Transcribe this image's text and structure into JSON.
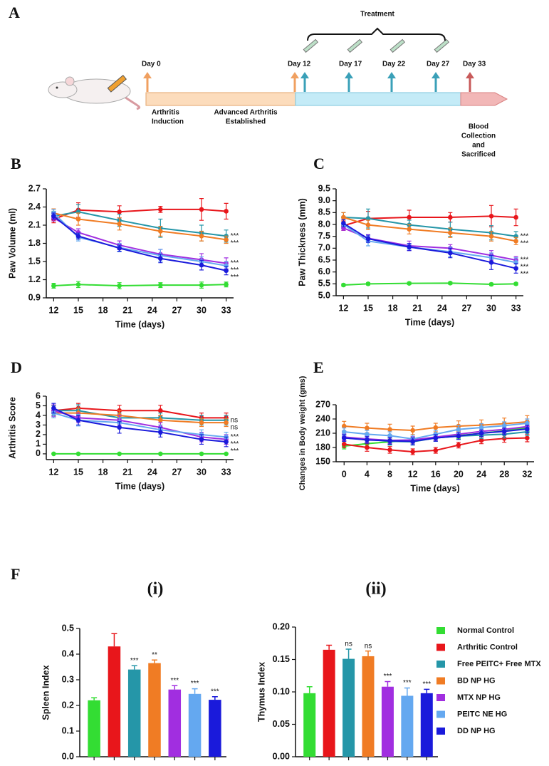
{
  "timeline": {
    "label": "A",
    "bracket_label": "Treatment",
    "markers": [
      "Day 0",
      "Day 12",
      "Day 17",
      "Day 22",
      "Day 27",
      "Day 33"
    ],
    "notes": [
      [
        "Arthritis",
        "Induction"
      ],
      [
        "Advanced  Arthritis",
        "Established"
      ],
      [
        "Blood",
        "Collection",
        "and",
        "Sacrificed"
      ]
    ]
  },
  "chart_data": [
    {
      "type": "line",
      "label": "B",
      "y_label": "Paw Volume (ml)",
      "x_label": "Time (days)",
      "x": [
        12,
        15,
        20,
        25,
        30,
        33
      ],
      "xlim": [
        11.1,
        33.9
      ],
      "xticks": [
        12,
        15,
        18,
        21,
        24,
        27,
        30,
        33
      ],
      "ylim": [
        0.9,
        2.7
      ],
      "yticks": [
        0.9,
        1.2,
        1.5,
        1.8,
        2.1,
        2.4,
        2.7
      ],
      "series": [
        {
          "color": "#33dd33",
          "values": [
            1.1,
            1.12,
            1.1,
            1.11,
            1.11,
            1.12
          ],
          "errors": [
            0.04,
            0.05,
            0.05,
            0.04,
            0.05,
            0.04
          ]
        },
        {
          "color": "#e8161b",
          "values": [
            2.2,
            2.35,
            2.32,
            2.36,
            2.36,
            2.33
          ],
          "errors": [
            0.06,
            0.12,
            0.1,
            0.05,
            0.18,
            0.13
          ]
        },
        {
          "color": "#2596a8",
          "values": [
            2.25,
            2.32,
            2.18,
            2.05,
            1.97,
            1.92
          ],
          "errors": [
            0.08,
            0.12,
            0.1,
            0.15,
            0.13,
            0.1
          ],
          "annotation": "***"
        },
        {
          "color": "#f07c24",
          "values": [
            2.3,
            2.2,
            2.12,
            2.0,
            1.92,
            1.86
          ],
          "errors": [
            0.07,
            0.1,
            0.1,
            0.08,
            0.08,
            0.06
          ],
          "annotation": "***"
        },
        {
          "color": "#a12ee0",
          "values": [
            2.22,
            1.98,
            1.77,
            1.62,
            1.53,
            1.47
          ],
          "errors": [
            0.05,
            0.06,
            0.07,
            0.08,
            0.1,
            0.09
          ],
          "annotation": "***"
        },
        {
          "color": "#64a8f0",
          "values": [
            2.3,
            1.9,
            1.73,
            1.6,
            1.5,
            1.43
          ],
          "errors": [
            0.06,
            0.06,
            0.07,
            0.1,
            0.08,
            0.07
          ],
          "annotation": "***"
        },
        {
          "color": "#1a1adb",
          "values": [
            2.25,
            1.92,
            1.72,
            1.55,
            1.44,
            1.35
          ],
          "errors": [
            0.05,
            0.05,
            0.05,
            0.07,
            0.08,
            0.07
          ],
          "annotation": "***"
        }
      ]
    },
    {
      "type": "line",
      "label": "C",
      "y_label": "Paw Thickness (mm)",
      "x_label": "Time (days)",
      "x": [
        12,
        15,
        20,
        25,
        30,
        33
      ],
      "xlim": [
        11.1,
        33.9
      ],
      "xticks": [
        12,
        15,
        18,
        21,
        24,
        27,
        30,
        33
      ],
      "ylim": [
        5,
        9.5
      ],
      "yticks": [
        {
          "value": 5,
          "label": "5.0"
        },
        5.5,
        {
          "value": 6,
          "label": "6.0"
        },
        6.5,
        {
          "value": 7,
          "label": "7.0"
        },
        7.5,
        {
          "value": 8,
          "label": "8.0"
        },
        8.5,
        {
          "value": 9,
          "label": "9.0"
        },
        9.5
      ],
      "series": [
        {
          "color": "#33dd33",
          "values": [
            5.45,
            5.5,
            5.52,
            5.53,
            5.48,
            5.5
          ],
          "errors": [
            0.05,
            0.05,
            0.05,
            0.05,
            0.05,
            0.05
          ]
        },
        {
          "color": "#e8161b",
          "values": [
            7.95,
            8.25,
            8.3,
            8.3,
            8.35,
            8.3
          ],
          "errors": [
            0.2,
            0.3,
            0.3,
            0.2,
            0.45,
            0.35
          ]
        },
        {
          "color": "#2596a8",
          "values": [
            8.3,
            8.25,
            7.98,
            7.8,
            7.65,
            7.5
          ],
          "errors": [
            0.2,
            0.4,
            0.2,
            0.3,
            0.3,
            0.2
          ],
          "annotation": "***"
        },
        {
          "color": "#f07c24",
          "values": [
            8.3,
            7.98,
            7.8,
            7.65,
            7.5,
            7.3
          ],
          "errors": [
            0.2,
            0.2,
            0.2,
            0.2,
            0.2,
            0.15
          ],
          "annotation": "***"
        },
        {
          "color": "#a12ee0",
          "values": [
            7.85,
            7.42,
            7.1,
            7.0,
            6.7,
            6.5
          ],
          "errors": [
            0.1,
            0.15,
            0.2,
            0.15,
            0.2,
            0.15
          ],
          "annotation": "***"
        },
        {
          "color": "#64a8f0",
          "values": [
            8.0,
            7.3,
            7.05,
            6.85,
            6.6,
            6.4
          ],
          "errors": [
            0.1,
            0.2,
            0.1,
            0.2,
            0.2,
            0.2
          ],
          "annotation": "***"
        },
        {
          "color": "#1a1adb",
          "values": [
            8.05,
            7.4,
            7.05,
            6.8,
            6.4,
            6.15
          ],
          "errors": [
            0.15,
            0.15,
            0.15,
            0.2,
            0.3,
            0.2
          ],
          "annotation": "***"
        }
      ]
    },
    {
      "type": "line",
      "label": "D",
      "y_label": "Arthritis Score",
      "x_label": "Time (days)",
      "x": [
        12,
        15,
        20,
        25,
        30,
        33
      ],
      "xlim": [
        11.1,
        33.9
      ],
      "xticks": [
        12,
        15,
        18,
        21,
        24,
        27,
        30,
        33
      ],
      "ylim": [
        -0.6,
        6
      ],
      "yticks": [
        0,
        1,
        2,
        3,
        4,
        5,
        6
      ],
      "series": [
        {
          "color": "#33dd33",
          "values": [
            0,
            0,
            0,
            0,
            0,
            0
          ],
          "errors": [
            0,
            0,
            0,
            0,
            0,
            0
          ]
        },
        {
          "color": "#e8161b",
          "values": [
            4.5,
            4.75,
            4.5,
            4.5,
            3.75,
            3.75
          ],
          "errors": [
            0.5,
            0.5,
            0.55,
            0.55,
            0.5,
            0.5
          ]
        },
        {
          "color": "#2596a8",
          "values": [
            4.5,
            4.5,
            3.75,
            3.75,
            3.5,
            3.5
          ],
          "errors": [
            0.5,
            0.6,
            0.5,
            0.5,
            0.5,
            0.5
          ],
          "annotation": "ns"
        },
        {
          "color": "#f07c24",
          "values": [
            4.25,
            4.25,
            4.0,
            3.5,
            3.25,
            3.25
          ],
          "errors": [
            0.5,
            0.5,
            0.5,
            0.5,
            0.4,
            0.4
          ],
          "annotation": "ns"
        },
        {
          "color": "#a12ee0",
          "values": [
            4.5,
            3.75,
            3.5,
            2.75,
            1.75,
            1.5
          ],
          "errors": [
            0.6,
            0.5,
            0.5,
            0.5,
            0.5,
            0.5
          ],
          "annotation": "***"
        },
        {
          "color": "#64a8f0",
          "values": [
            4.25,
            3.5,
            3.25,
            2.5,
            2.0,
            1.75
          ],
          "errors": [
            0.5,
            0.6,
            0.5,
            0.5,
            0.5,
            0.5
          ],
          "annotation": "***"
        },
        {
          "color": "#1a1adb",
          "values": [
            4.75,
            3.5,
            2.75,
            2.25,
            1.5,
            1.25
          ],
          "errors": [
            0.5,
            0.5,
            0.6,
            0.5,
            0.5,
            0.5
          ],
          "annotation": "***"
        }
      ]
    },
    {
      "type": "line",
      "label": "E",
      "y_label": "Changes in Body weight (gms)",
      "x_label": "Time (days)",
      "x": [
        0,
        4,
        8,
        12,
        16,
        20,
        24,
        28,
        32
      ],
      "xlim": [
        -1.4,
        33.2
      ],
      "xticks": [
        0,
        4,
        8,
        12,
        16,
        20,
        24,
        28,
        32
      ],
      "ylim": [
        150,
        270
      ],
      "yticks": [
        150,
        180,
        210,
        240,
        270
      ],
      "series": [
        {
          "color": "#33dd33",
          "values": [
            183,
            188,
            192,
            195,
            200,
            205,
            210,
            215,
            222
          ],
          "errors": [
            6,
            6,
            6,
            6,
            6,
            6,
            6,
            6,
            6
          ]
        },
        {
          "color": "#e8161b",
          "values": [
            187,
            180,
            175,
            171,
            174,
            185,
            195,
            199,
            200
          ],
          "errors": [
            7,
            8,
            7,
            6,
            6,
            6,
            7,
            8,
            8
          ]
        },
        {
          "color": "#2596a8",
          "values": [
            200,
            197,
            193,
            192,
            200,
            204,
            206,
            208,
            213
          ],
          "errors": [
            7,
            8,
            8,
            7,
            7,
            7,
            7,
            8,
            8
          ]
        },
        {
          "color": "#f07c24",
          "values": [
            225,
            221,
            218,
            216,
            222,
            225,
            227,
            230,
            234
          ],
          "errors": [
            10,
            10,
            11,
            9,
            9,
            11,
            11,
            12,
            13
          ]
        },
        {
          "color": "#a12ee0",
          "values": [
            202,
            198,
            195,
            196,
            202,
            208,
            214,
            218,
            224
          ],
          "errors": [
            7,
            7,
            7,
            7,
            7,
            7,
            7,
            8,
            8
          ]
        },
        {
          "color": "#64a8f0",
          "values": [
            213,
            208,
            205,
            198,
            208,
            218,
            222,
            226,
            231
          ],
          "errors": [
            8,
            8,
            8,
            8,
            8,
            8,
            8,
            8,
            9
          ]
        },
        {
          "color": "#1a1adb",
          "values": [
            200,
            196,
            194,
            193,
            200,
            204,
            210,
            214,
            219
          ],
          "errors": [
            7,
            7,
            7,
            7,
            7,
            7,
            7,
            7,
            8
          ]
        }
      ]
    },
    {
      "type": "bar",
      "label": "F",
      "title": "(i)",
      "y_label": "Spleen Index",
      "categories": [
        null,
        null,
        null,
        null,
        null,
        null,
        null
      ],
      "colors": [
        "#33dd33",
        "#e8161b",
        "#2596a8",
        "#f07c24",
        "#a12ee0",
        "#64a8f0",
        "#1a1adb"
      ],
      "values": [
        0.22,
        0.43,
        0.34,
        0.365,
        0.262,
        0.245,
        0.222
      ],
      "errors": [
        0.01,
        0.05,
        0.015,
        0.012,
        0.015,
        0.02,
        0.012
      ],
      "annotations": [
        null,
        null,
        "***",
        "**",
        "***",
        "***",
        "***"
      ],
      "ylim": [
        0,
        0.5
      ],
      "yticks": [
        {
          "value": 0,
          "label": "0.0"
        },
        0.1,
        0.2,
        0.3,
        0.4,
        0.5
      ]
    },
    {
      "type": "bar",
      "title": "(ii)",
      "y_label": "Thymus Index",
      "categories": [
        null,
        null,
        null,
        null,
        null,
        null,
        null
      ],
      "colors": [
        "#33dd33",
        "#e8161b",
        "#2596a8",
        "#f07c24",
        "#a12ee0",
        "#64a8f0",
        "#1a1adb"
      ],
      "values": [
        0.098,
        0.165,
        0.151,
        0.155,
        0.108,
        0.094,
        0.098
      ],
      "errors": [
        0.01,
        0.007,
        0.015,
        0.008,
        0.008,
        0.012,
        0.006
      ],
      "annotations": [
        null,
        null,
        "ns",
        "ns",
        "***",
        "***",
        "***"
      ],
      "ylim": [
        0,
        0.2
      ],
      "yticks": [
        {
          "value": 0,
          "label": "0.00"
        },
        0.05,
        {
          "value": 0.1,
          "label": "0.10"
        },
        0.15,
        {
          "value": 0.2,
          "label": "0.20"
        }
      ],
      "legend": {
        "entries": [
          {
            "name": "Normal Control",
            "color": "#33dd33"
          },
          {
            "name": "Arthritic Control",
            "color": "#e8161b"
          },
          {
            "name": "Free PEITC+ Free MTX",
            "color": "#2596a8"
          },
          {
            "name": "BD NP HG",
            "color": "#f07c24"
          },
          {
            "name": "MTX NP HG",
            "color": "#a12ee0"
          },
          {
            "name": "PEITC NE HG",
            "color": "#64a8f0"
          },
          {
            "name": "DD NP HG",
            "color": "#1a1adb"
          }
        ]
      }
    }
  ]
}
